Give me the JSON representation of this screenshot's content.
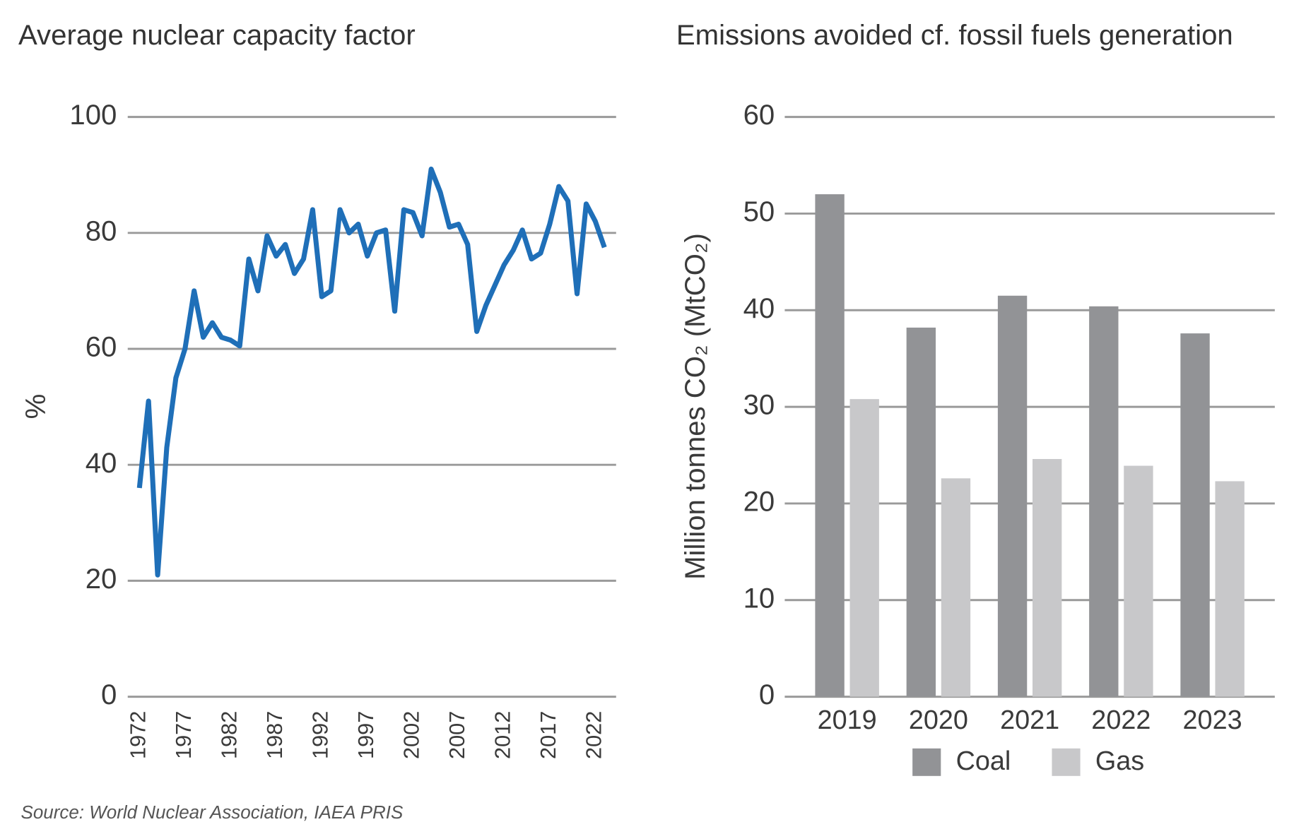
{
  "chart_data": [
    {
      "type": "line",
      "title": "Average nuclear capacity factor",
      "y_label": "%",
      "x": [
        1972,
        1973,
        1974,
        1975,
        1976,
        1977,
        1978,
        1979,
        1980,
        1981,
        1982,
        1983,
        1984,
        1985,
        1986,
        1987,
        1988,
        1989,
        1990,
        1991,
        1992,
        1993,
        1994,
        1995,
        1996,
        1997,
        1998,
        1999,
        2000,
        2001,
        2002,
        2003,
        2004,
        2005,
        2006,
        2007,
        2008,
        2009,
        2010,
        2011,
        2012,
        2013,
        2014,
        2015,
        2016,
        2017,
        2018,
        2019,
        2020,
        2021,
        2022,
        2023
      ],
      "values": [
        36,
        51,
        21,
        43,
        55,
        60,
        70,
        62,
        64.5,
        62,
        61.5,
        60.5,
        75.5,
        70,
        79.5,
        76,
        78,
        73,
        75.5,
        84,
        69,
        70,
        84,
        80,
        81.5,
        76,
        80,
        80.5,
        66.5,
        84,
        83.5,
        79.5,
        91,
        87,
        81,
        81.5,
        78,
        63,
        67.5,
        71,
        74.5,
        77,
        80.5,
        75.5,
        76.5,
        81.5,
        88,
        85.5,
        69.5,
        85,
        82,
        77.5
      ],
      "color": "#1f6fb8",
      "xlim": [
        1972,
        2023
      ],
      "xticks": [
        1972,
        1977,
        1982,
        1987,
        1992,
        1997,
        2002,
        2007,
        2012,
        2017,
        2022
      ],
      "ylim": [
        0,
        100
      ],
      "yticks": [
        0,
        20,
        40,
        60,
        80,
        100
      ],
      "grid": true
    },
    {
      "type": "bar",
      "title": "Emissions avoided cf. fossil fuels generation",
      "y_label": "Million tonnes CO₂ (MtCO₂)",
      "categories": [
        "2019",
        "2020",
        "2021",
        "2022",
        "2023"
      ],
      "series": [
        {
          "name": "Coal",
          "color": "#929396",
          "values": [
            52,
            38.2,
            41.5,
            40.4,
            37.6
          ]
        },
        {
          "name": "Gas",
          "color": "#c8c8ca",
          "values": [
            30.8,
            22.6,
            24.6,
            23.9,
            22.3
          ]
        }
      ],
      "ylim": [
        0,
        60
      ],
      "yticks": [
        0,
        10,
        20,
        30,
        40,
        50,
        60
      ],
      "grid": true,
      "legend": "bottom"
    }
  ],
  "source": "Source: World Nuclear Association, IAEA PRIS"
}
